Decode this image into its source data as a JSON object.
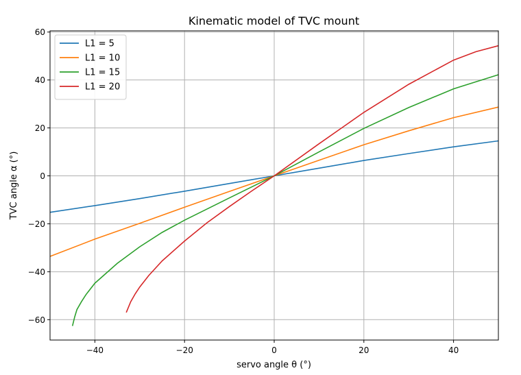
{
  "chart_data": {
    "type": "line",
    "title": "Kinematic model of TVC mount",
    "xlabel": "servo angle θ (°)",
    "ylabel": "TVC angle α (°)",
    "xlim": [
      -50,
      50
    ],
    "ylim": [
      -68.5,
      60.5
    ],
    "xticks": [
      -40,
      -20,
      0,
      20,
      40
    ],
    "xtick_labels": [
      "−40",
      "−20",
      "0",
      "20",
      "40"
    ],
    "yticks": [
      -60,
      -40,
      -20,
      0,
      20,
      40,
      60
    ],
    "ytick_labels": [
      "−60",
      "−40",
      "−20",
      "0",
      "20",
      "40",
      "60"
    ],
    "grid": true,
    "legend_position": "upper-left",
    "series": [
      {
        "name": "L1 = 5",
        "color": "#1f77b4",
        "points": [
          [
            -50,
            -15.2
          ],
          [
            -40,
            -12.4
          ],
          [
            -30,
            -9.5
          ],
          [
            -20,
            -6.4
          ],
          [
            -10,
            -3.2
          ],
          [
            0,
            0
          ],
          [
            10,
            3.2
          ],
          [
            20,
            6.4
          ],
          [
            30,
            9.3
          ],
          [
            40,
            12.1
          ],
          [
            50,
            14.6
          ]
        ]
      },
      {
        "name": "L1 = 10",
        "color": "#ff7f0e",
        "points": [
          [
            -50,
            -33.6
          ],
          [
            -40,
            -26.4
          ],
          [
            -30,
            -19.8
          ],
          [
            -20,
            -13.1
          ],
          [
            -10,
            -6.5
          ],
          [
            0,
            0
          ],
          [
            10,
            6.5
          ],
          [
            20,
            13
          ],
          [
            30,
            18.8
          ],
          [
            40,
            24.3
          ],
          [
            50,
            28.7
          ]
        ]
      },
      {
        "name": "L1 = 15",
        "color": "#2ca02c",
        "points": [
          [
            -45,
            -62.6
          ],
          [
            -44.5,
            -58.8
          ],
          [
            -44,
            -55.8
          ],
          [
            -43,
            -52.5
          ],
          [
            -42,
            -49.6
          ],
          [
            -40,
            -44.8
          ],
          [
            -35,
            -36.5
          ],
          [
            -30,
            -29.6
          ],
          [
            -25,
            -23.6
          ],
          [
            -20,
            -18.5
          ],
          [
            -10,
            -9.2
          ],
          [
            0,
            0
          ],
          [
            10,
            10
          ],
          [
            20,
            19.8
          ],
          [
            30,
            28.5
          ],
          [
            40,
            36.3
          ],
          [
            50,
            42.2
          ]
        ]
      },
      {
        "name": "L1 = 20",
        "color": "#d62728",
        "points": [
          [
            -33,
            -57
          ],
          [
            -32,
            -52.5
          ],
          [
            -31,
            -49.2
          ],
          [
            -30,
            -46.4
          ],
          [
            -28,
            -41.6
          ],
          [
            -25,
            -35.5
          ],
          [
            -20,
            -27.2
          ],
          [
            -15,
            -19.6
          ],
          [
            -10,
            -12.8
          ],
          [
            -5,
            -6.3
          ],
          [
            0,
            0
          ],
          [
            10,
            13.4
          ],
          [
            20,
            26.5
          ],
          [
            30,
            38.2
          ],
          [
            40,
            48.3
          ],
          [
            45,
            51.8
          ],
          [
            50,
            54.3
          ]
        ]
      }
    ]
  }
}
